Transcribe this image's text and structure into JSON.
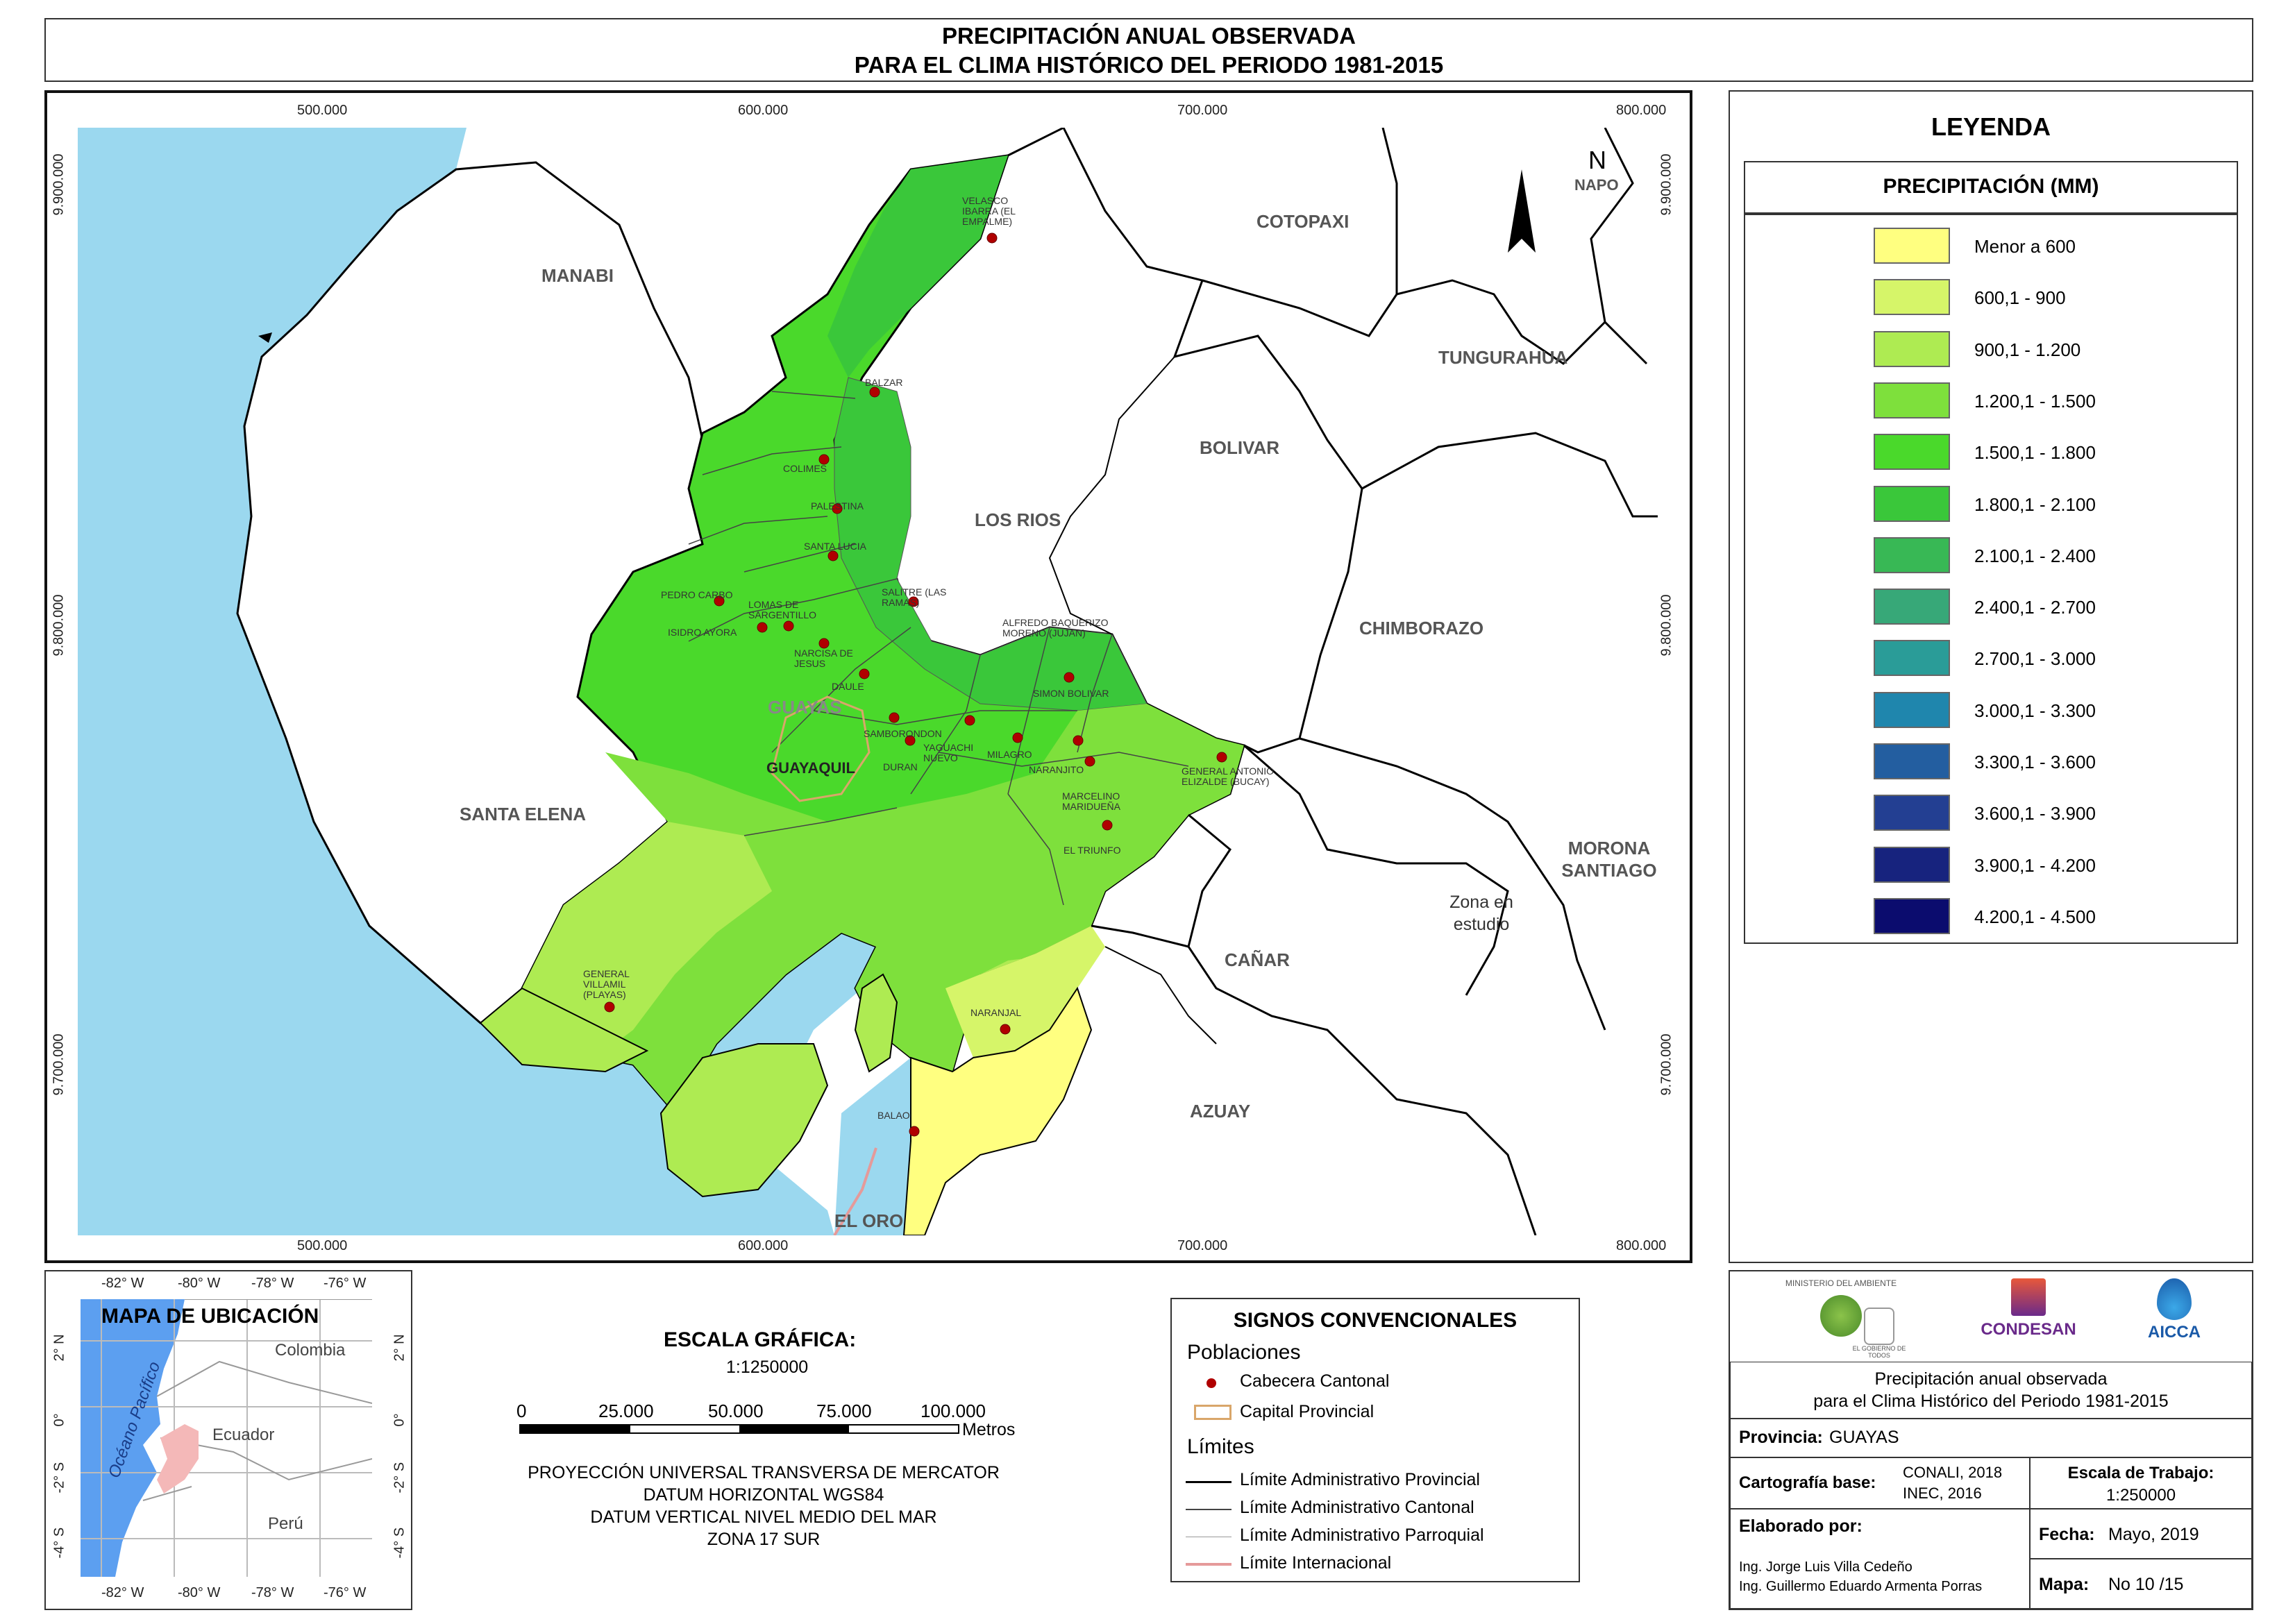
{
  "title": {
    "line1": "PRECIPITACIÓN ANUAL OBSERVADA",
    "line2": "PARA EL CLIMA HISTÓRICO DEL PERIODO 1981-2015"
  },
  "map": {
    "x_ticks": [
      "500.000",
      "600.000",
      "700.000",
      "800.000"
    ],
    "y_ticks": [
      "9.900.000",
      "9.800.000",
      "9.700.000"
    ],
    "provinces": [
      "MANABI",
      "COTOPAXI",
      "NAPO",
      "TUNGURAHUA",
      "BOLIVAR",
      "LOS RIOS",
      "CHIMBORAZO",
      "SANTA ELENA",
      "GUAYAS",
      "MORONA SANTIAGO",
      "Zona en estudio",
      "CAÑAR",
      "AZUAY",
      "EL ORO"
    ],
    "capital": "GUAYAQUIL",
    "north": "N",
    "cities": [
      "VELASCO IBARRA (EL EMPALME)",
      "BALZAR",
      "COLIMES",
      "PALESTINA",
      "SANTA LUCIA",
      "PEDRO CARBO",
      "LOMAS DE SARGENTILLO",
      "ISIDRO AYORA",
      "SALITRE (LAS RAMAS)",
      "ALFREDO BAQUERIZO MORENO (JUJAN)",
      "NARCISA DE JESUS",
      "DAULE",
      "SIMON BOLIVAR",
      "SAMBORONDON",
      "YAGUACHI NUEVO",
      "DURAN",
      "MILAGRO",
      "NARANJITO",
      "GENERAL ANTONIO ELIZALDE (BUCAY)",
      "MARCELINO MARIDUEÑA",
      "EL TRIUNFO",
      "GENERAL VILLAMIL (PLAYAS)",
      "NARANJAL",
      "BALAO"
    ]
  },
  "legend": {
    "title": "LEYENDA",
    "subtitle": "PRECIPITACIÓN (MM)",
    "items": [
      {
        "label": "Menor a 600",
        "color": "#ffff80"
      },
      {
        "label": "600,1 - 900",
        "color": "#d6f569"
      },
      {
        "label": "900,1 - 1.200",
        "color": "#aeeb52"
      },
      {
        "label": "1.200,1 - 1.500",
        "color": "#7ee03c"
      },
      {
        "label": "1.500,1 - 1.800",
        "color": "#4ad92b"
      },
      {
        "label": "1.800,1 - 2.100",
        "color": "#3ac73a"
      },
      {
        "label": "2.100,1 - 2.400",
        "color": "#38b855"
      },
      {
        "label": "2.400,1 - 2.700",
        "color": "#37a878"
      },
      {
        "label": "2.700,1 - 3.000",
        "color": "#2a9c98"
      },
      {
        "label": "3.000,1 - 3.300",
        "color": "#1f86ad"
      },
      {
        "label": "3.300,1 - 3.600",
        "color": "#235ea0"
      },
      {
        "label": "3.600,1 - 3.900",
        "color": "#233f92"
      },
      {
        "label": "3.900,1 - 4.200",
        "color": "#17237e"
      },
      {
        "label": "4.200,1 - 4.500",
        "color": "#0b0c6e"
      }
    ]
  },
  "location_map": {
    "title": "MAPA DE UBICACIÓN",
    "lon_ticks": [
      "-82° W",
      "-80° W",
      "-78° W",
      "-76° W"
    ],
    "lat_ticks": [
      "2° N",
      "0°",
      "-2° S",
      "-4° S"
    ],
    "countries": [
      "Colombia",
      "Ecuador",
      "Perú"
    ],
    "ocean": "Océano Pacífico"
  },
  "scale": {
    "title": "ESCALA GRÁFICA:",
    "ratio": "1:1250000",
    "ticks": [
      "0",
      "25.000",
      "50.000",
      "75.000",
      "100.000"
    ],
    "unit": "Metros",
    "projection": [
      "PROYECCIÓN UNIVERSAL TRANSVERSA DE MERCATOR",
      "DATUM HORIZONTAL WGS84",
      "DATUM VERTICAL NIVEL MEDIO DEL MAR",
      "ZONA 17 SUR"
    ]
  },
  "signs": {
    "title": "SIGNOS CONVENCIONALES",
    "poblaciones": "Poblaciones",
    "cabecera": "Cabecera Cantonal",
    "capital": "Capital Provincial",
    "limites": "Límites",
    "prov": "Límite Administrativo Provincial",
    "cant": "Límite Administrativo Cantonal",
    "parr": "Límite Administrativo Parroquial",
    "intl": "Límite Internacional"
  },
  "info": {
    "logos": [
      "MINISTERIO DEL AMBIENTE",
      "EL GOBIERNO DE TODOS",
      "CONDESAN",
      "AICCA"
    ],
    "desc1": "Precipitación anual observada",
    "desc2": "para el Clima Histórico del Periodo 1981-2015",
    "provincia_lbl": "Provincia:",
    "provincia_val": "GUAYAS",
    "carto_lbl": "Cartografía base:",
    "carto_val1": "CONALI, 2018",
    "carto_val2": "INEC, 2016",
    "escala_lbl": "Escala de Trabajo:",
    "escala_val": "1:250000",
    "elab_lbl": "Elaborado por:",
    "elab1": "Ing. Jorge Luis Villa Cedeño",
    "elab2": "Ing. Guillermo Eduardo Armenta Porras",
    "fecha_lbl": "Fecha:",
    "fecha_val": "Mayo, 2019",
    "mapa_lbl": "Mapa:",
    "mapa_val": "No 10 /15"
  }
}
